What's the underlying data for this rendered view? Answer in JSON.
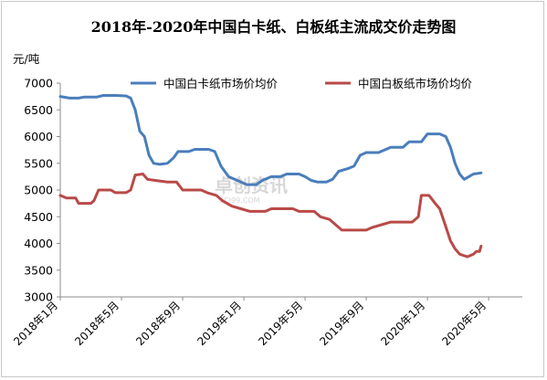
{
  "chart_data": {
    "type": "line",
    "title": "2018年-2020年中国白卡纸、白板纸主流成交价走势图",
    "ylabel": "元/吨",
    "ylim": [
      3000,
      7000
    ],
    "yticks": [
      3000,
      3500,
      4000,
      4500,
      5000,
      5500,
      6000,
      6500,
      7000
    ],
    "xticks": [
      "2018年1月",
      "2018年5月",
      "2018年9月",
      "2019年1月",
      "2019年5月",
      "2019年9月",
      "2020年1月",
      "2020年5月"
    ],
    "x_unit": "month index (0 = 2018年1月)",
    "xlim": [
      0,
      30
    ],
    "grid": false,
    "legend_position": "top",
    "watermark": "卓创资讯 SCI99.COM",
    "series": [
      {
        "name": "中国白卡纸市场价均价",
        "color": "#4a7ebb",
        "points": [
          [
            0,
            6750
          ],
          [
            0.6,
            6720
          ],
          [
            1.2,
            6720
          ],
          [
            1.6,
            6740
          ],
          [
            2.4,
            6740
          ],
          [
            2.8,
            6770
          ],
          [
            3.6,
            6770
          ],
          [
            4.3,
            6760
          ],
          [
            4.6,
            6720
          ],
          [
            4.9,
            6500
          ],
          [
            5.2,
            6100
          ],
          [
            5.5,
            6000
          ],
          [
            5.8,
            5650
          ],
          [
            6.1,
            5500
          ],
          [
            6.5,
            5480
          ],
          [
            7.0,
            5500
          ],
          [
            7.4,
            5600
          ],
          [
            7.7,
            5720
          ],
          [
            8.4,
            5720
          ],
          [
            8.8,
            5760
          ],
          [
            9.7,
            5760
          ],
          [
            10.1,
            5720
          ],
          [
            10.5,
            5450
          ],
          [
            11.0,
            5250
          ],
          [
            11.4,
            5200
          ],
          [
            11.8,
            5150
          ],
          [
            12.2,
            5100
          ],
          [
            12.8,
            5100
          ],
          [
            13.2,
            5180
          ],
          [
            13.8,
            5250
          ],
          [
            14.4,
            5250
          ],
          [
            14.8,
            5300
          ],
          [
            15.6,
            5300
          ],
          [
            16.0,
            5250
          ],
          [
            16.4,
            5180
          ],
          [
            16.8,
            5150
          ],
          [
            17.4,
            5150
          ],
          [
            17.8,
            5200
          ],
          [
            18.2,
            5350
          ],
          [
            18.8,
            5400
          ],
          [
            19.2,
            5450
          ],
          [
            19.6,
            5650
          ],
          [
            20.0,
            5700
          ],
          [
            20.8,
            5700
          ],
          [
            21.2,
            5750
          ],
          [
            21.6,
            5800
          ],
          [
            22.4,
            5800
          ],
          [
            22.8,
            5900
          ],
          [
            23.6,
            5900
          ],
          [
            24.0,
            6050
          ],
          [
            24.8,
            6050
          ],
          [
            25.2,
            6000
          ],
          [
            25.5,
            5800
          ],
          [
            25.8,
            5500
          ],
          [
            26.1,
            5300
          ],
          [
            26.4,
            5200
          ],
          [
            26.7,
            5250
          ],
          [
            27.0,
            5300
          ],
          [
            27.5,
            5320
          ]
        ]
      },
      {
        "name": "中国白板纸市场价均价",
        "color": "#b94a48",
        "points": [
          [
            0,
            4900
          ],
          [
            0.4,
            4850
          ],
          [
            1.0,
            4850
          ],
          [
            1.2,
            4750
          ],
          [
            2.0,
            4750
          ],
          [
            2.2,
            4800
          ],
          [
            2.5,
            5000
          ],
          [
            3.3,
            5000
          ],
          [
            3.6,
            4950
          ],
          [
            4.3,
            4950
          ],
          [
            4.6,
            5000
          ],
          [
            4.9,
            5280
          ],
          [
            5.4,
            5300
          ],
          [
            5.7,
            5200
          ],
          [
            6.2,
            5180
          ],
          [
            7.0,
            5150
          ],
          [
            7.6,
            5150
          ],
          [
            8.0,
            5000
          ],
          [
            9.2,
            5000
          ],
          [
            9.6,
            4950
          ],
          [
            10.2,
            4900
          ],
          [
            10.6,
            4800
          ],
          [
            11.2,
            4700
          ],
          [
            11.8,
            4650
          ],
          [
            12.4,
            4600
          ],
          [
            13.4,
            4600
          ],
          [
            13.8,
            4650
          ],
          [
            15.2,
            4650
          ],
          [
            15.6,
            4600
          ],
          [
            16.6,
            4600
          ],
          [
            17.0,
            4500
          ],
          [
            17.6,
            4450
          ],
          [
            18.4,
            4250
          ],
          [
            20.0,
            4250
          ],
          [
            20.4,
            4300
          ],
          [
            21.0,
            4350
          ],
          [
            21.6,
            4400
          ],
          [
            23.0,
            4400
          ],
          [
            23.4,
            4500
          ],
          [
            23.6,
            4900
          ],
          [
            24.1,
            4900
          ],
          [
            24.5,
            4750
          ],
          [
            24.8,
            4650
          ],
          [
            25.1,
            4400
          ],
          [
            25.5,
            4050
          ],
          [
            25.8,
            3900
          ],
          [
            26.1,
            3800
          ],
          [
            26.6,
            3750
          ],
          [
            27.0,
            3800
          ],
          [
            27.2,
            3850
          ],
          [
            27.4,
            3850
          ],
          [
            27.5,
            3950
          ]
        ]
      }
    ]
  }
}
